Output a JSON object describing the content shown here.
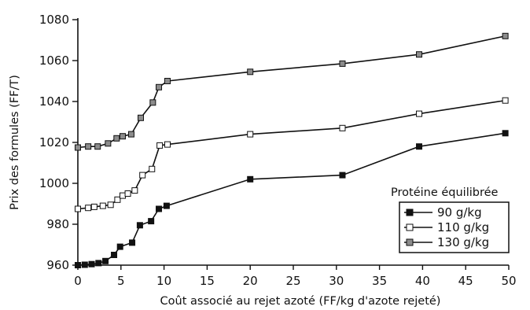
{
  "chart_data": {
    "type": "line",
    "xlabel": "Coût associé au rejet azoté (FF/kg d'azote rejeté)",
    "ylabel": "Prix des formules (FF/T)",
    "xlim": [
      0,
      50
    ],
    "ylim": [
      960,
      1080
    ],
    "xticks": [
      0,
      5,
      10,
      15,
      20,
      25,
      30,
      35,
      40,
      45,
      50
    ],
    "yticks": [
      960,
      980,
      1000,
      1020,
      1040,
      1060,
      1080
    ],
    "grid": false,
    "legend": {
      "title": "Protéine équilibrée",
      "placement": "bottom-right"
    },
    "series": [
      {
        "name": "90 g/kg",
        "marker": "filled-square",
        "color": "#111111",
        "x": [
          0,
          0.8,
          1.6,
          2.4,
          3.2,
          4.2,
          4.9,
          6.3,
          7.2,
          8.5,
          9.4,
          10.3,
          20,
          30.7,
          39.6,
          49.6
        ],
        "y": [
          960,
          960.2,
          960.5,
          961,
          962,
          965,
          969,
          971,
          979.5,
          981.5,
          987.5,
          989,
          1002,
          1004,
          1018,
          1024.5
        ]
      },
      {
        "name": "110 g/kg",
        "marker": "open-square",
        "color": "#ffffff",
        "x": [
          0,
          1.2,
          1.9,
          2.9,
          3.8,
          4.6,
          5.2,
          5.8,
          6.6,
          7.5,
          8.6,
          9.5,
          10.4,
          20,
          30.7,
          39.6,
          49.6
        ],
        "y": [
          987.5,
          988,
          988.5,
          989,
          989.5,
          992,
          994,
          995,
          996.5,
          1004,
          1007,
          1018.5,
          1019,
          1024,
          1027,
          1034,
          1040.5
        ]
      },
      {
        "name": "130 g/kg",
        "marker": "grey-square",
        "color": "#8c8c8c",
        "x": [
          0,
          1.2,
          2.3,
          3.5,
          4.5,
          5.2,
          6.2,
          7.3,
          8.7,
          9.4,
          10.4,
          20,
          30.7,
          39.6,
          49.6
        ],
        "y": [
          1017.5,
          1018,
          1018,
          1019.5,
          1022,
          1023,
          1024,
          1032,
          1039.5,
          1047,
          1050,
          1054.5,
          1058.5,
          1063,
          1072
        ]
      }
    ]
  }
}
